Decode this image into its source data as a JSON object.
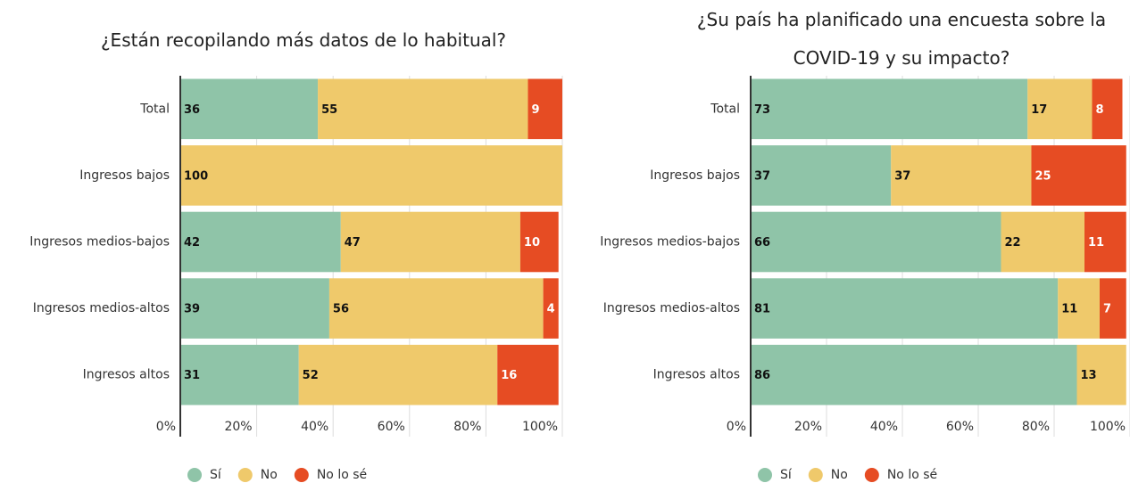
{
  "chart_data": [
    {
      "type": "stacked-bar-horizontal",
      "title": "¿Están recopilando más datos de lo habitual?",
      "categories": [
        "Total",
        "Ingresos bajos",
        "Ingresos medios-bajos",
        "Ingresos medios-altos",
        "Ingresos altos"
      ],
      "series": [
        {
          "name": "Sí",
          "color": "#8fc4a8",
          "values": [
            36,
            null,
            42,
            39,
            31
          ]
        },
        {
          "name": "No",
          "color": "#efc96b",
          "values": [
            55,
            100,
            47,
            56,
            52
          ]
        },
        {
          "name": "No lo sé",
          "color": "#e64c23",
          "values": [
            9,
            null,
            10,
            4,
            16
          ]
        }
      ],
      "xlim": [
        0,
        100
      ],
      "xticks": [
        {
          "value": 0,
          "label": "0%"
        },
        {
          "value": 20,
          "label": "20%"
        },
        {
          "value": 40,
          "label": "40%"
        },
        {
          "value": 60,
          "label": "60%"
        },
        {
          "value": 80,
          "label": "80%"
        },
        {
          "value": 100,
          "label": "100%"
        }
      ],
      "grid": true,
      "legend": "bottom"
    },
    {
      "type": "stacked-bar-horizontal",
      "title": "¿Su país ha planificado una encuesta sobre la COVID-19 y su impacto?",
      "categories": [
        "Total",
        "Ingresos bajos",
        "Ingresos medios-bajos",
        "Ingresos medios-altos",
        "Ingresos altos"
      ],
      "series": [
        {
          "name": "Sí",
          "color": "#8fc4a8",
          "values": [
            73,
            37,
            66,
            81,
            86
          ]
        },
        {
          "name": "No",
          "color": "#efc96b",
          "values": [
            17,
            37,
            22,
            11,
            13
          ]
        },
        {
          "name": "No lo sé",
          "color": "#e64c23",
          "values": [
            8,
            25,
            11,
            7,
            null
          ]
        }
      ],
      "xlim": [
        0,
        100
      ],
      "xticks": [
        {
          "value": 0,
          "label": "0%"
        },
        {
          "value": 20,
          "label": "20%"
        },
        {
          "value": 40,
          "label": "40%"
        },
        {
          "value": 60,
          "label": "60%"
        },
        {
          "value": 80,
          "label": "80%"
        },
        {
          "value": 100,
          "label": "100%"
        }
      ],
      "grid": true,
      "legend": "bottom"
    }
  ]
}
